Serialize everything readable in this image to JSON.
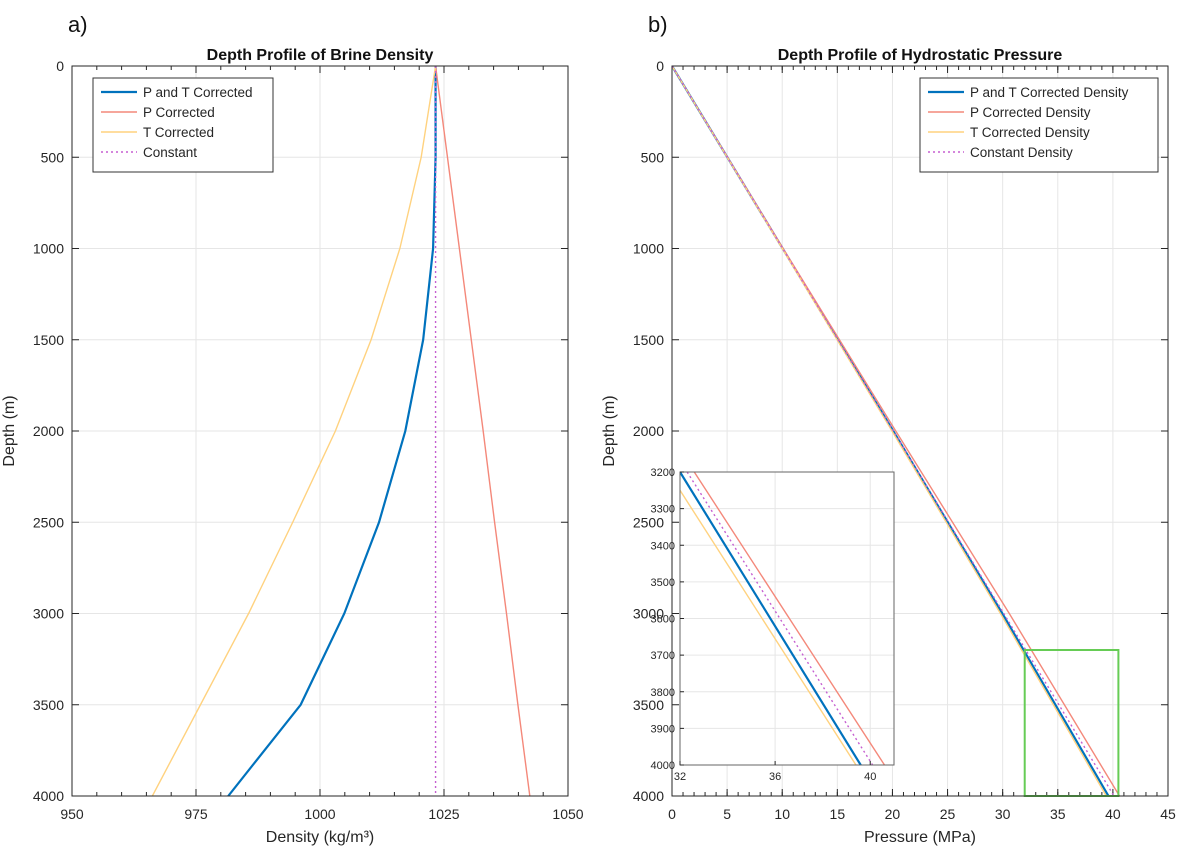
{
  "colors": {
    "pt": "#0072BD",
    "p": "#F4887A",
    "t": "#FFD27F",
    "c": "#C55FD0",
    "zoom_box": "#66CC55",
    "grid": "#e6e6e6",
    "axis": "#262626"
  },
  "chart_data": [
    {
      "panel_label": "a)",
      "type": "line",
      "title": "Depth Profile of Brine Density",
      "xlabel": "Density (kg/m³)",
      "ylabel": "Depth (m)",
      "xlim": [
        950,
        1050
      ],
      "ylim": [
        0,
        4000
      ],
      "y_reversed": true,
      "grid": true,
      "legend_position": "top-left",
      "xticks": [
        950,
        975,
        1000,
        1025,
        1050
      ],
      "yticks": [
        0,
        500,
        1000,
        1500,
        2000,
        2500,
        3000,
        3500,
        4000
      ],
      "series": [
        {
          "name": "P and T Corrected",
          "color_key": "pt",
          "style": "solid",
          "points": [
            [
              1023.3,
              0
            ],
            [
              1023.3,
              500
            ],
            [
              1022.8,
              1000
            ],
            [
              1020.8,
              1500
            ],
            [
              1017.2,
              2000
            ],
            [
              1011.9,
              2500
            ],
            [
              1004.9,
              3000
            ],
            [
              996.1,
              3500
            ],
            [
              981.5,
              4000
            ]
          ]
        },
        {
          "name": "P Corrected",
          "color_key": "p",
          "style": "solid",
          "points": [
            [
              1023.3,
              0
            ],
            [
              1025.7,
              500
            ],
            [
              1028.1,
              1000
            ],
            [
              1030.5,
              1500
            ],
            [
              1032.9,
              2000
            ],
            [
              1035.2,
              2500
            ],
            [
              1037.6,
              3000
            ],
            [
              1039.9,
              3500
            ],
            [
              1042.3,
              4000
            ]
          ]
        },
        {
          "name": "T Corrected",
          "color_key": "t",
          "style": "solid",
          "points": [
            [
              1023.3,
              0
            ],
            [
              1020.4,
              500
            ],
            [
              1016.1,
              1000
            ],
            [
              1010.3,
              1500
            ],
            [
              1003.1,
              2000
            ],
            [
              994.5,
              2500
            ],
            [
              985.6,
              3000
            ],
            [
              975.9,
              3500
            ],
            [
              966.2,
              4000
            ]
          ]
        },
        {
          "name": "Constant",
          "color_key": "c",
          "style": "dotted",
          "points": [
            [
              1023.3,
              0
            ],
            [
              1023.3,
              4000
            ]
          ]
        }
      ]
    },
    {
      "panel_label": "b)",
      "type": "line",
      "title": "Depth Profile of Hydrostatic Pressure",
      "xlabel": "Pressure (MPa)",
      "ylabel": "Depth (m)",
      "xlim": [
        0,
        45
      ],
      "ylim": [
        0,
        4000
      ],
      "y_reversed": true,
      "grid": true,
      "legend_position": "top-right",
      "xticks": [
        0,
        5,
        10,
        15,
        20,
        25,
        30,
        35,
        40,
        45
      ],
      "yticks": [
        0,
        500,
        1000,
        1500,
        2000,
        2500,
        3000,
        3500,
        4000
      ],
      "series": [
        {
          "name": "P and T Corrected Density",
          "color_key": "pt",
          "style": "solid",
          "points": [
            [
              0,
              0
            ],
            [
              10.04,
              1000
            ],
            [
              20.07,
              2000
            ],
            [
              29.97,
              3000
            ],
            [
              39.6,
              4000
            ]
          ]
        },
        {
          "name": "P Corrected Density",
          "color_key": "p",
          "style": "solid",
          "points": [
            [
              0,
              0
            ],
            [
              10.08,
              1000
            ],
            [
              20.3,
              2000
            ],
            [
              30.6,
              3000
            ],
            [
              40.6,
              4000
            ]
          ]
        },
        {
          "name": "T Corrected Density",
          "color_key": "t",
          "style": "solid",
          "points": [
            [
              0,
              0
            ],
            [
              10.0,
              1000
            ],
            [
              19.96,
              2000
            ],
            [
              29.8,
              3000
            ],
            [
              39.4,
              4000
            ]
          ]
        },
        {
          "name": "Constant Density",
          "color_key": "c",
          "style": "dotted",
          "points": [
            [
              0,
              0
            ],
            [
              10.04,
              1000
            ],
            [
              20.08,
              2000
            ],
            [
              30.1,
              3000
            ],
            [
              40.1,
              4000
            ]
          ]
        }
      ],
      "zoom_region": {
        "x": [
          32,
          40.5
        ],
        "y": [
          3200,
          4000
        ]
      },
      "inset": {
        "xlim": [
          32,
          41
        ],
        "ylim": [
          3200,
          4000
        ],
        "y_reversed": true,
        "xticks": [
          32,
          36,
          40
        ],
        "yticks": [
          3200,
          3300,
          3400,
          3500,
          3600,
          3700,
          3800,
          3900,
          4000
        ],
        "series": [
          {
            "color_key": "pt",
            "style": "solid",
            "points": [
              [
                32.0,
                3200
              ],
              [
                39.6,
                4000
              ]
            ]
          },
          {
            "color_key": "p",
            "style": "solid",
            "points": [
              [
                32.6,
                3200
              ],
              [
                40.6,
                4000
              ]
            ]
          },
          {
            "color_key": "t",
            "style": "solid",
            "points": [
              [
                32.0,
                3250
              ],
              [
                39.4,
                4000
              ]
            ]
          },
          {
            "color_key": "c",
            "style": "dotted",
            "points": [
              [
                32.3,
                3200
              ],
              [
                40.1,
                4000
              ]
            ]
          }
        ]
      }
    }
  ]
}
